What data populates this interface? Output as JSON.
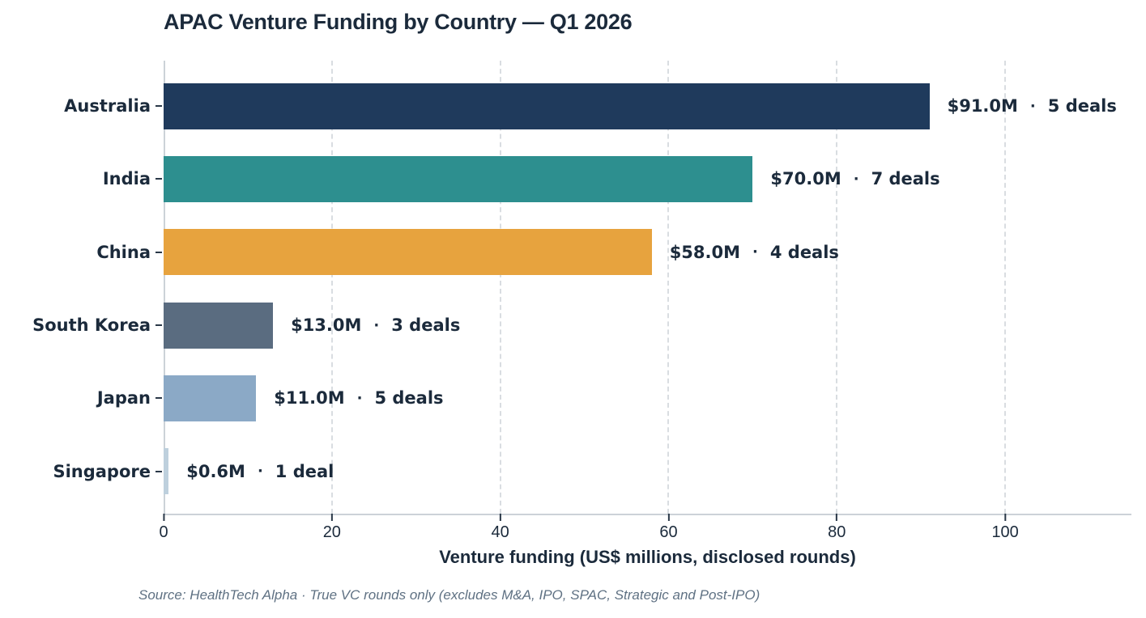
{
  "chart_data": {
    "type": "bar",
    "orientation": "horizontal",
    "title": "APAC Venture Funding by Country — Q1 2026",
    "xlabel": "Venture funding (US$ millions, disclosed rounds)",
    "source_note": "Source: HealthTech Alpha · True VC rounds only (excludes M&A, IPO, SPAC, Strategic and Post-IPO)",
    "separator": "·",
    "xlim": [
      0,
      115
    ],
    "xticks": [
      0,
      20,
      40,
      60,
      80,
      100
    ],
    "grid": "vertical-dashed",
    "legend": "none",
    "categories": [
      "Australia",
      "India",
      "China",
      "South Korea",
      "Japan",
      "Singapore"
    ],
    "values": [
      91.0,
      70.0,
      58.0,
      13.0,
      11.0,
      0.6
    ],
    "deals": [
      5,
      7,
      4,
      3,
      5,
      1
    ],
    "rows": [
      {
        "label": "Australia",
        "value": 91.0,
        "value_label": "$91.0M",
        "deals_label": "5 deals",
        "color": "#1f3a5c"
      },
      {
        "label": "India",
        "value": 70.0,
        "value_label": "$70.0M",
        "deals_label": "7 deals",
        "color": "#2d8f8f"
      },
      {
        "label": "China",
        "value": 58.0,
        "value_label": "$58.0M",
        "deals_label": "4 deals",
        "color": "#e7a33e"
      },
      {
        "label": "South Korea",
        "value": 13.0,
        "value_label": "$13.0M",
        "deals_label": "3 deals",
        "color": "#5a6c80"
      },
      {
        "label": "Japan",
        "value": 11.0,
        "value_label": "$11.0M",
        "deals_label": "5 deals",
        "color": "#8ba9c6"
      },
      {
        "label": "Singapore",
        "value": 0.6,
        "value_label": "$0.6M",
        "deals_label": "1 deal",
        "color": "#bed0dd"
      }
    ],
    "colors": {
      "text": "#1b2a3b",
      "muted": "#5f7183",
      "gridline": "#d9dde1",
      "spine": "#ccd2d8",
      "background": "#ffffff"
    }
  }
}
